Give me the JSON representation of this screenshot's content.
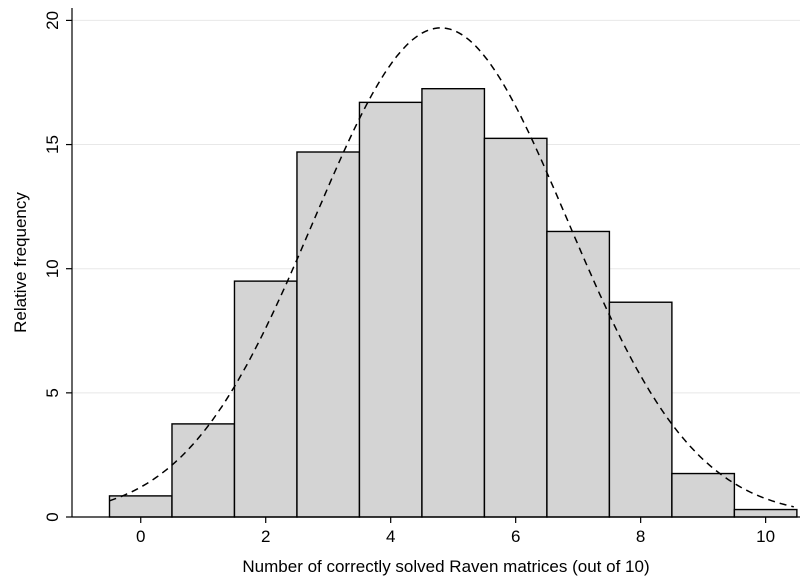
{
  "chart_data": {
    "type": "bar",
    "subtype": "histogram",
    "title": "",
    "xlabel": "Number of correctly solved Raven matrices (out of 10)",
    "ylabel": "Relative frequency",
    "bin_width": 1,
    "categories": [
      "0",
      "1",
      "2",
      "3",
      "4",
      "5",
      "6",
      "7",
      "8",
      "9",
      "10"
    ],
    "bin_centers": [
      0,
      1,
      2,
      3,
      4,
      5,
      6,
      7,
      8,
      9,
      10
    ],
    "values": [
      0.85,
      3.75,
      9.5,
      14.7,
      16.7,
      17.25,
      15.25,
      11.5,
      8.65,
      1.75,
      0.3
    ],
    "xlim": [
      -1.1,
      10.55
    ],
    "ylim": [
      0,
      20.5
    ],
    "xticks": [
      0,
      2,
      4,
      6,
      8,
      10
    ],
    "yticks": [
      0,
      5,
      10,
      15,
      20
    ],
    "ytick_rotation": "vertical",
    "grid": "horizontal",
    "overlay": {
      "type": "normal-density-curve",
      "style": "dashed",
      "mean": 4.8,
      "sd": 2.03,
      "peak": 19.7
    },
    "colors": {
      "bar_fill": "#d4d4d4",
      "bar_edge": "#000000",
      "curve": "#000000",
      "grid": "#e8e8e8",
      "background": "#ffffff"
    }
  }
}
